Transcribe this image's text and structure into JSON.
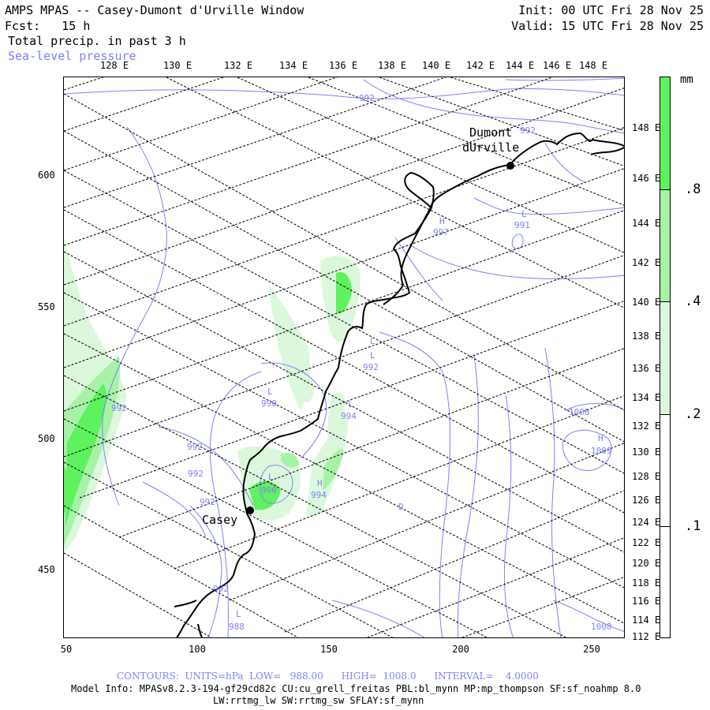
{
  "header": {
    "title": "AMPS MPAS -- Casey-Dumont d'Urville Window",
    "fcst_label": "Fcst:",
    "fcst_value": "15 h",
    "field_1": "Total precip. in past 3 h",
    "field_2": "Sea-level pressure",
    "init": "Init: 00 UTC Fri 28 Nov 25",
    "valid": "Valid: 15 UTC Fri 28 Nov 25"
  },
  "top_lon_labels": [
    "128 E",
    "130 E",
    "132 E",
    "134 E",
    "136 E",
    "138 E",
    "140 E",
    "142 E",
    "144 E",
    "146 E",
    "148 E"
  ],
  "right_lon_labels": [
    "148 E",
    "146 E",
    "144 E",
    "142 E",
    "140 E",
    "138 E",
    "136 E",
    "134 E",
    "132 E",
    "130 E",
    "128 E",
    "126 E",
    "124 E",
    "122 E",
    "120 E",
    "118 E",
    "116 E",
    "114 E",
    "112 E"
  ],
  "y_axis": [
    "600",
    "550",
    "500",
    "450"
  ],
  "x_axis": [
    "50",
    "100",
    "150",
    "200",
    "250"
  ],
  "stations": [
    {
      "name_line1": "Dumont",
      "name_line2": "dUrville"
    },
    {
      "name_line1": "Casey"
    }
  ],
  "pressure_labels": [
    {
      "text": "992"
    },
    {
      "text": "992"
    },
    {
      "text": "H"
    },
    {
      "text": "997"
    },
    {
      "text": "L"
    },
    {
      "text": "991"
    },
    {
      "text": "L"
    },
    {
      "text": "992"
    },
    {
      "text": "L"
    },
    {
      "text": "990"
    },
    {
      "text": "L"
    },
    {
      "text": "994"
    },
    {
      "text": "992"
    },
    {
      "text": "992"
    },
    {
      "text": "992"
    },
    {
      "text": "L"
    },
    {
      "text": "990"
    },
    {
      "text": "H"
    },
    {
      "text": "994"
    },
    {
      "text": "992"
    },
    {
      "text": "992"
    },
    {
      "text": "L"
    },
    {
      "text": "988"
    },
    {
      "text": "1008"
    },
    {
      "text": "H"
    },
    {
      "text": "1009"
    },
    {
      "text": "1008"
    },
    {
      "text": "L"
    },
    {
      "text": "D"
    }
  ],
  "colorbar": {
    "unit": "mm",
    "levels": [
      ".8",
      ".4",
      ".2",
      ".1"
    ],
    "colors": [
      "#5ef25e",
      "#a6f3a6",
      "#dcf8dc",
      "#ffffff"
    ]
  },
  "colors": {
    "contour": "#7f7fff",
    "coast": "#000000",
    "grid": "#000000"
  },
  "footer": {
    "contours": "CONTOURS:  UNITS=hPa  LOW=   988.00      HIGH=  1008.0      INTERVAL=    4.0000",
    "model_info": "Model Info: MPASv8.2.3-194-gf29cd82c CU:cu_grell_freitas PBL:bl_mynn MP:mp_thompson SF:sf_noahmp 8.0",
    "model_info_2": "LW:rrtmg_lw SW:rrtmg_sw SFLAY:sf_mynn"
  }
}
